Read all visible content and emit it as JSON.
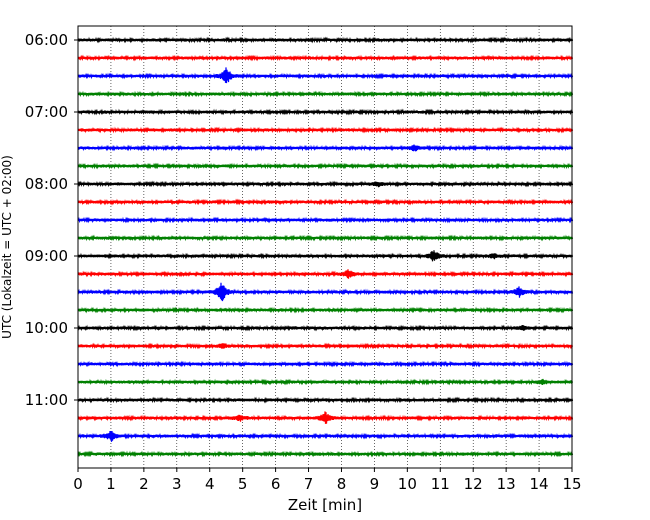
{
  "chart_data": {
    "type": "line",
    "title": "",
    "xlabel": "Zeit  [min]",
    "ylabel": "UTC (Lokalzeit = UTC + 02:00)",
    "xlim": [
      0,
      15
    ],
    "x_ticks": [
      0,
      1,
      2,
      3,
      4,
      5,
      6,
      7,
      8,
      9,
      10,
      11,
      12,
      13,
      14,
      15
    ],
    "y_tick_labels": [
      "06:00",
      "07:00",
      "08:00",
      "09:00",
      "10:00",
      "11:00"
    ],
    "grid_x": "dotted",
    "trace_colors": [
      "#000000",
      "#ff0000",
      "#0000ff",
      "#008000"
    ],
    "traces": [
      {
        "start": "06:00",
        "events": []
      },
      {
        "start": "06:15",
        "events": []
      },
      {
        "start": "06:30",
        "events": [
          {
            "t": 4.5,
            "amp": 8
          }
        ]
      },
      {
        "start": "06:45",
        "events": []
      },
      {
        "start": "07:00",
        "events": []
      },
      {
        "start": "07:15",
        "events": []
      },
      {
        "start": "07:30",
        "events": [
          {
            "t": 10.2,
            "amp": 3
          }
        ]
      },
      {
        "start": "07:45",
        "events": []
      },
      {
        "start": "08:00",
        "events": [
          {
            "t": 9.1,
            "amp": 2
          }
        ]
      },
      {
        "start": "08:15",
        "events": []
      },
      {
        "start": "08:30",
        "events": []
      },
      {
        "start": "08:45",
        "events": []
      },
      {
        "start": "09:00",
        "events": [
          {
            "t": 10.8,
            "amp": 6
          },
          {
            "t": 12.6,
            "amp": 2
          }
        ]
      },
      {
        "start": "09:15",
        "events": [
          {
            "t": 8.2,
            "amp": 4
          }
        ]
      },
      {
        "start": "09:30",
        "events": [
          {
            "t": 4.35,
            "amp": 10
          },
          {
            "t": 13.4,
            "amp": 5
          }
        ]
      },
      {
        "start": "09:45",
        "events": []
      },
      {
        "start": "10:00",
        "events": [
          {
            "t": 13.5,
            "amp": 2
          }
        ]
      },
      {
        "start": "10:15",
        "events": [
          {
            "t": 4.4,
            "amp": 2
          }
        ]
      },
      {
        "start": "10:30",
        "events": []
      },
      {
        "start": "10:45",
        "events": [
          {
            "t": 14.1,
            "amp": 2
          }
        ]
      },
      {
        "start": "11:00",
        "events": []
      },
      {
        "start": "11:15",
        "events": [
          {
            "t": 7.5,
            "amp": 6
          },
          {
            "t": 4.9,
            "amp": 3
          }
        ]
      },
      {
        "start": "11:30",
        "events": [
          {
            "t": 1.0,
            "amp": 5
          }
        ]
      },
      {
        "start": "11:45",
        "events": []
      }
    ]
  }
}
